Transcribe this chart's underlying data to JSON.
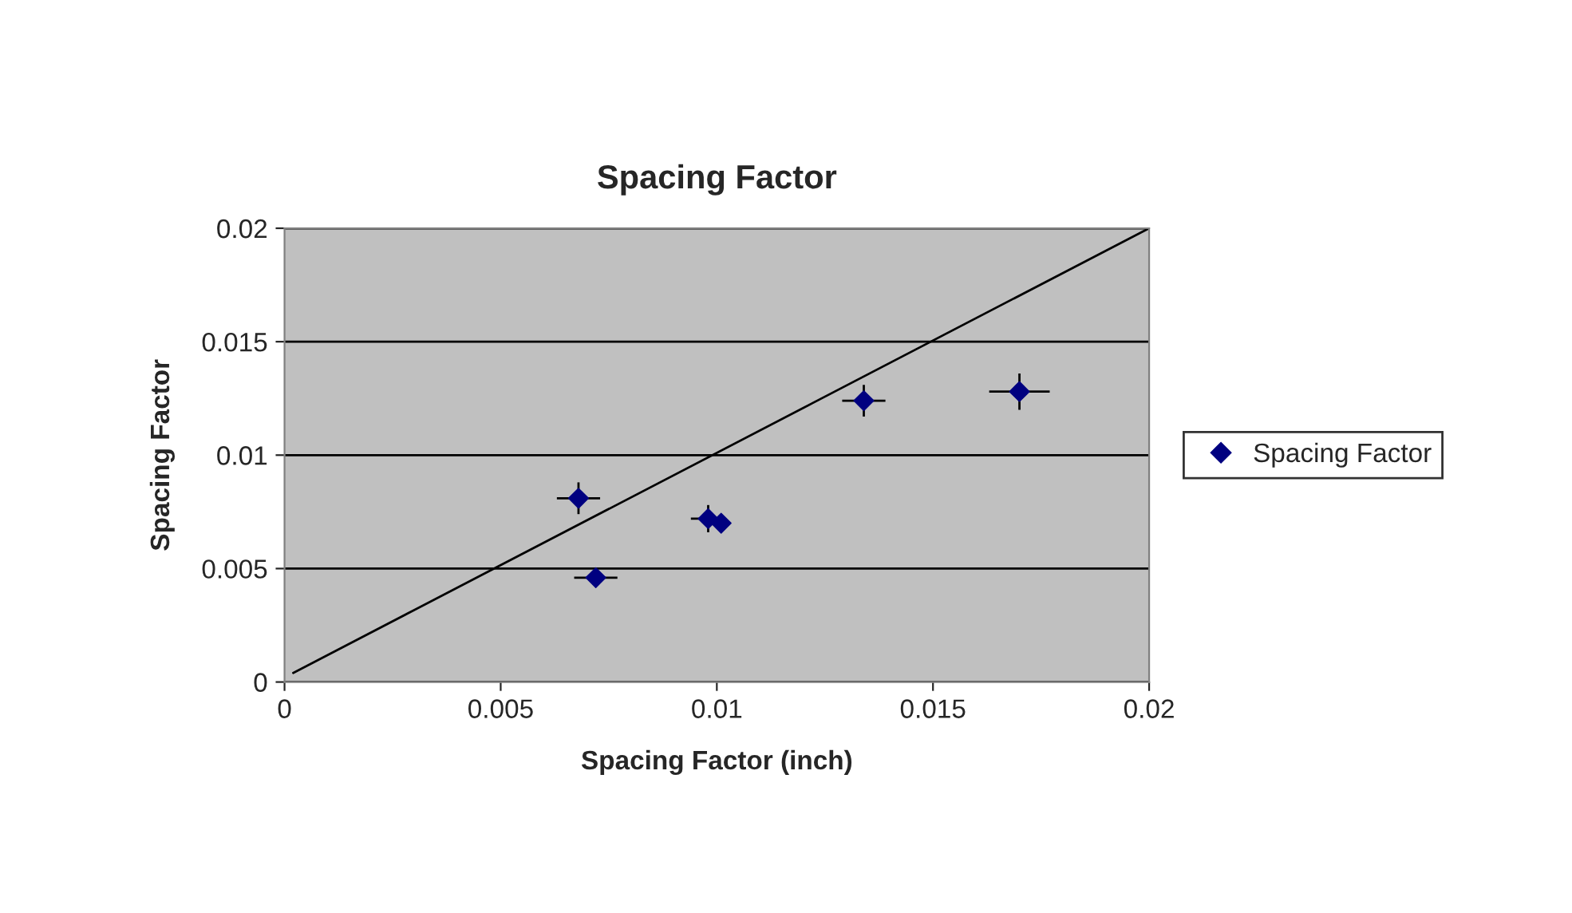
{
  "chart_data": {
    "type": "scatter",
    "title": "Spacing Factor",
    "xlabel": "Spacing Factor (inch)",
    "ylabel": "Spacing Factor",
    "xlim": [
      0,
      0.02
    ],
    "ylim": [
      0,
      0.02
    ],
    "xticks": [
      {
        "value": 0,
        "label": "0"
      },
      0.005,
      0.01,
      0.015,
      0.02
    ],
    "yticks": [
      {
        "value": 0,
        "label": "0"
      },
      0.005,
      0.01,
      0.015,
      0.02
    ],
    "grid": "y",
    "legend": "right",
    "series": [
      {
        "name": "Spacing Factor",
        "color": "#000080",
        "marker": "diamond",
        "x": [
          0.0068,
          0.0072,
          0.0098,
          0.0101,
          0.0134,
          0.017
        ],
        "values": [
          0.0081,
          0.0046,
          0.0072,
          0.007,
          0.0124,
          0.0128
        ],
        "errors": [
          0.0007,
          0.0003,
          0.0006,
          null,
          0.0007,
          0.0008
        ],
        "xerrors": [
          0.0005,
          0.0005,
          0.0004,
          null,
          0.0005,
          0.0007
        ]
      },
      {
        "type": "line",
        "color": "#000000",
        "x": [
          0.0002,
          0.02
        ],
        "values": [
          0.0004,
          0.02
        ]
      }
    ]
  }
}
